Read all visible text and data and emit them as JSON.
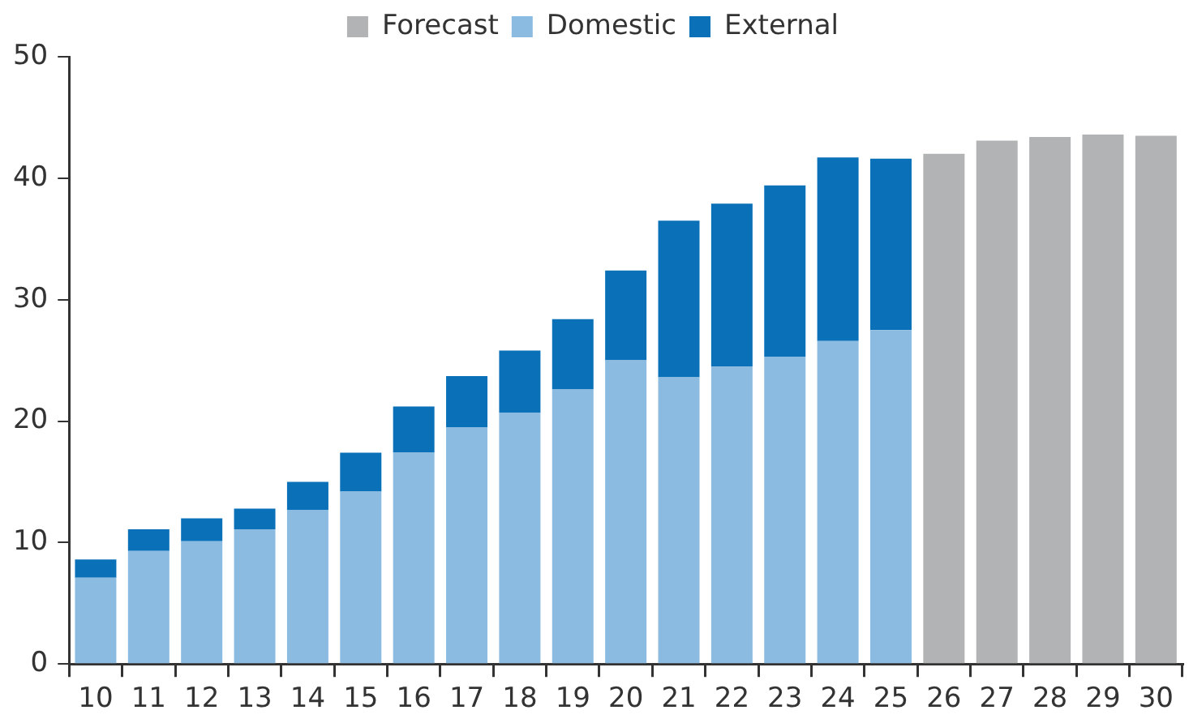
{
  "chart_data": {
    "type": "bar",
    "stacked": true,
    "legend": "top",
    "categories": [
      "10",
      "11",
      "12",
      "13",
      "14",
      "15",
      "16",
      "17",
      "18",
      "19",
      "20",
      "21",
      "22",
      "23",
      "24",
      "25",
      "26",
      "27",
      "28",
      "29",
      "30"
    ],
    "series": [
      {
        "name": "Forecast",
        "color": "#b1b3b4",
        "values": [
          null,
          null,
          null,
          null,
          null,
          null,
          null,
          null,
          null,
          null,
          null,
          null,
          null,
          null,
          null,
          null,
          42.0,
          43.1,
          43.4,
          43.6,
          43.5
        ]
      },
      {
        "name": "Domestic",
        "color": "#8cbbe1",
        "values": [
          7.1,
          9.3,
          10.1,
          11.1,
          12.7,
          14.2,
          17.4,
          19.5,
          20.7,
          22.6,
          25.0,
          23.6,
          24.5,
          25.3,
          26.6,
          27.5,
          null,
          null,
          null,
          null,
          null
        ]
      },
      {
        "name": "External",
        "color": "#0a71b9",
        "values": [
          1.5,
          1.8,
          1.9,
          1.7,
          2.3,
          3.2,
          3.8,
          4.2,
          5.1,
          5.8,
          7.4,
          12.9,
          13.4,
          14.1,
          15.1,
          14.1,
          null,
          null,
          null,
          null,
          null
        ]
      }
    ],
    "ylim": [
      0,
      50
    ],
    "yticks": [
      0,
      10,
      20,
      30,
      40,
      50
    ]
  }
}
